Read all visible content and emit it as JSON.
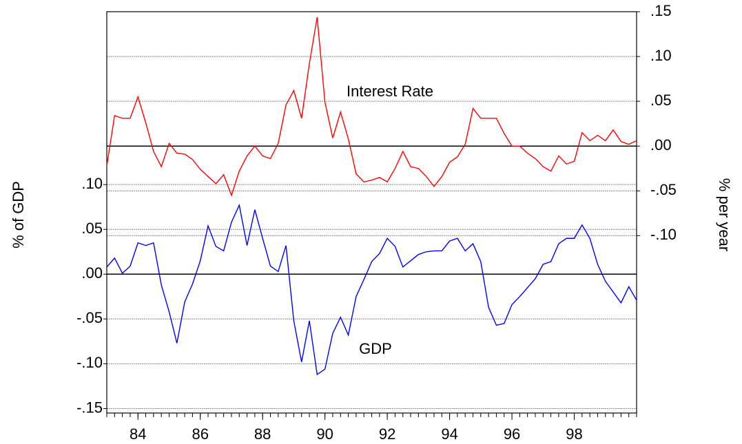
{
  "chart_data": {
    "type": "line",
    "x": [
      1983,
      1983.25,
      1983.5,
      1983.75,
      1984,
      1984.25,
      1984.5,
      1984.75,
      1985,
      1985.25,
      1985.5,
      1985.75,
      1986,
      1986.25,
      1986.5,
      1986.75,
      1987,
      1987.25,
      1987.5,
      1987.75,
      1988,
      1988.25,
      1988.5,
      1988.75,
      1989,
      1989.25,
      1989.5,
      1989.75,
      1990,
      1990.25,
      1990.5,
      1990.75,
      1991,
      1991.25,
      1991.5,
      1991.75,
      1992,
      1992.25,
      1992.5,
      1992.75,
      1993,
      1993.25,
      1993.5,
      1993.75,
      1994,
      1994.25,
      1994.5,
      1994.75,
      1995,
      1995.25,
      1995.5,
      1995.75,
      1996,
      1996.25,
      1996.5,
      1996.75,
      1997,
      1997.25,
      1997.5,
      1997.75,
      1998,
      1998.25,
      1998.5,
      1998.75,
      1999,
      1999.25,
      1999.5,
      1999.75,
      2000
    ],
    "xlim": [
      1983,
      2000
    ],
    "xticks": [
      {
        "value": 1984,
        "label": "84"
      },
      {
        "value": 1986,
        "label": "86"
      },
      {
        "value": 1988,
        "label": "88"
      },
      {
        "value": 1990,
        "label": "90"
      },
      {
        "value": 1992,
        "label": "92"
      },
      {
        "value": 1994,
        "label": "94"
      },
      {
        "value": 1996,
        "label": "96"
      },
      {
        "value": 1998,
        "label": "98"
      }
    ],
    "ylabel": "% of GDP",
    "y2label": "% per year",
    "ylim": [
      -0.155,
      0.293
    ],
    "yticks": [
      {
        "value": 0.1,
        "label": ".10"
      },
      {
        "value": 0.05,
        "label": ".05"
      },
      {
        "value": 0,
        "label": ".00"
      },
      {
        "value": -0.05,
        "label": "-.05"
      },
      {
        "value": -0.1,
        "label": "-.10"
      },
      {
        "value": -0.15,
        "label": "-.15"
      }
    ],
    "y2lim": [
      -0.298,
      0.15
    ],
    "y2ticks": [
      {
        "value": 0.15,
        "label": ".15"
      },
      {
        "value": 0.1,
        "label": ".10"
      },
      {
        "value": 0.05,
        "label": ".05"
      },
      {
        "value": 0,
        "label": ".00"
      },
      {
        "value": -0.05,
        "label": "-.05"
      },
      {
        "value": -0.1,
        "label": "-.10"
      }
    ],
    "grid": true,
    "series": [
      {
        "name": "GDP",
        "color": "#0000ff",
        "axis": "y",
        "values": [
          0.008,
          0.018,
          0.001,
          0.009,
          0.035,
          0.032,
          0.035,
          -0.012,
          -0.042,
          -0.077,
          -0.031,
          -0.011,
          0.015,
          0.054,
          0.031,
          0.026,
          0.058,
          0.077,
          0.032,
          0.072,
          0.04,
          0.009,
          0.003,
          0.032,
          -0.052,
          -0.098,
          -0.052,
          -0.112,
          -0.106,
          -0.066,
          -0.048,
          -0.068,
          -0.025,
          -0.006,
          0.014,
          0.023,
          0.04,
          0.031,
          0.008,
          0.015,
          0.022,
          0.025,
          0.026,
          0.026,
          0.037,
          0.04,
          0.026,
          0.034,
          0.014,
          -0.037,
          -0.057,
          -0.055,
          -0.034,
          -0.025,
          -0.015,
          -0.005,
          0.011,
          0.014,
          0.034,
          0.04,
          0.04,
          0.055,
          0.04,
          0.011,
          -0.008,
          -0.02,
          -0.032,
          -0.014,
          -0.029
        ]
      },
      {
        "name": "Interest Rate",
        "color": "#ff0000",
        "axis": "y2",
        "values": [
          -0.022,
          0.034,
          0.031,
          0.031,
          0.055,
          0.026,
          -0.006,
          -0.023,
          0.003,
          -0.008,
          -0.009,
          -0.015,
          -0.026,
          -0.034,
          -0.042,
          -0.032,
          -0.055,
          -0.028,
          -0.011,
          0,
          -0.011,
          -0.014,
          0.003,
          0.046,
          0.062,
          0.031,
          0.092,
          0.144,
          0.049,
          0.009,
          0.038,
          0.008,
          -0.031,
          -0.04,
          -0.038,
          -0.035,
          -0.04,
          -0.025,
          -0.006,
          -0.023,
          -0.025,
          -0.034,
          -0.045,
          -0.034,
          -0.018,
          -0.012,
          0.002,
          0.042,
          0.031,
          0.031,
          0.031,
          0.014,
          0,
          0,
          -0.008,
          -0.014,
          -0.023,
          -0.028,
          -0.011,
          -0.02,
          -0.017,
          0.015,
          0.006,
          0.012,
          0.006,
          0.018,
          0.005,
          0.002,
          0.006
        ]
      }
    ]
  }
}
